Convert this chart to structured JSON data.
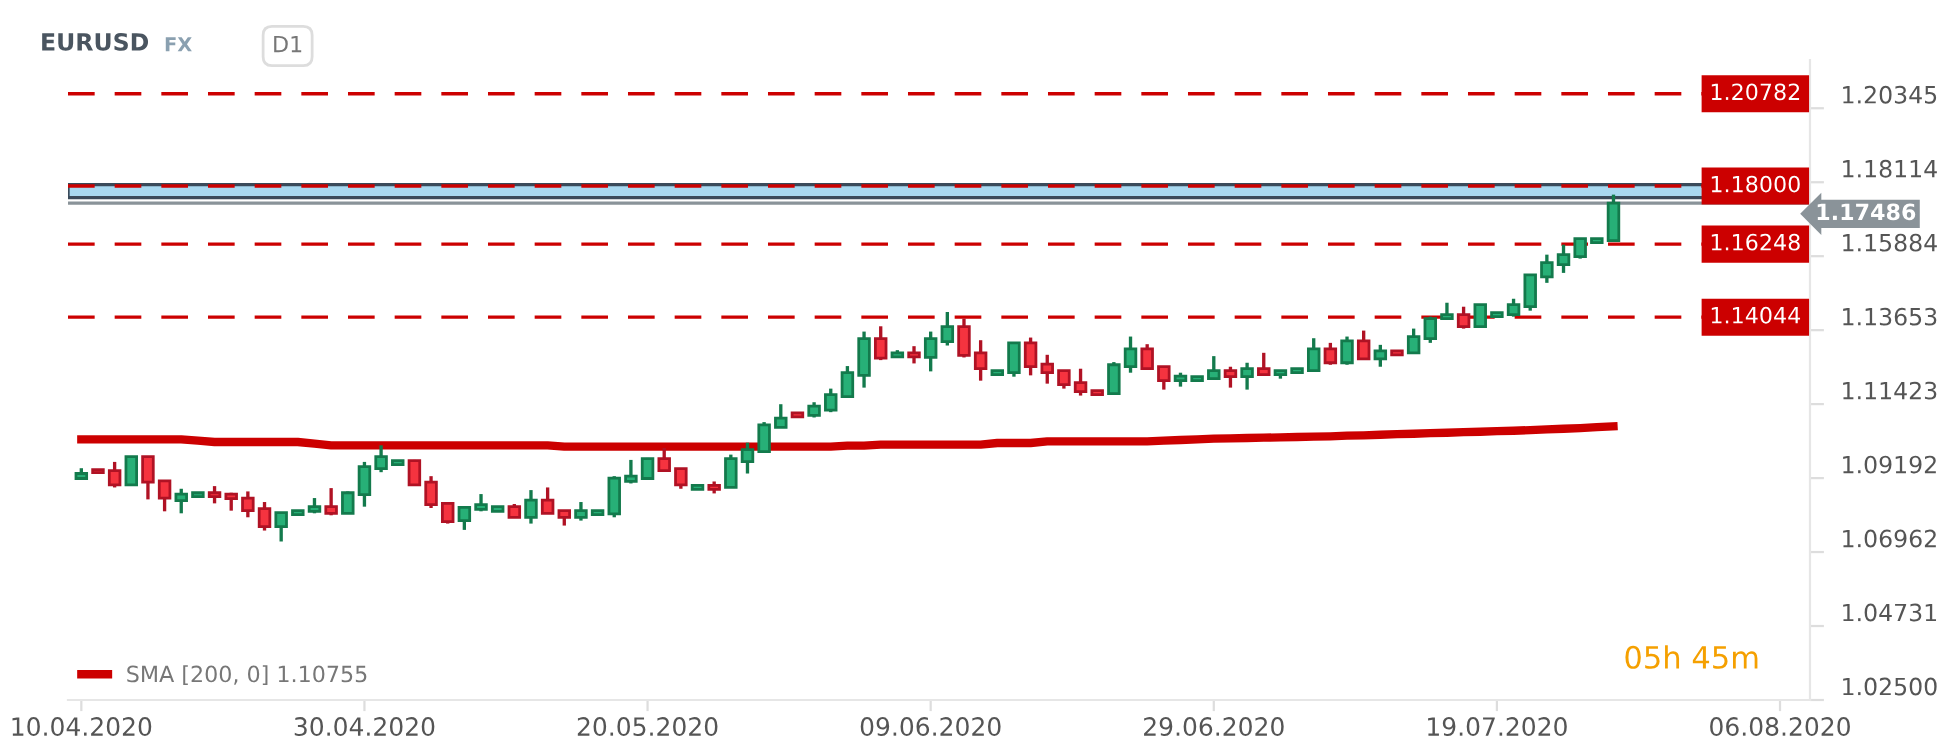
{
  "chart_data": {
    "type": "candlestick",
    "title": "EURUSD",
    "annotations": [
      "FX",
      "D1",
      "05h 45m"
    ],
    "categories": [
      "10.04.2020",
      null,
      null,
      null,
      null,
      null,
      null,
      null,
      null,
      null,
      null,
      null,
      null,
      null,
      null,
      null,
      null,
      "30.04.2020",
      null,
      null,
      null,
      null,
      null,
      null,
      null,
      null,
      null,
      null,
      null,
      null,
      null,
      null,
      null,
      null,
      "20.05.2020",
      null,
      null,
      null,
      null,
      null,
      null,
      null,
      null,
      null,
      null,
      null,
      null,
      null,
      null,
      null,
      null,
      "09.06.2020",
      null,
      null,
      null,
      null,
      null,
      null,
      null,
      null,
      null,
      null,
      null,
      null,
      null,
      null,
      null,
      null,
      "29.06.2020",
      null,
      null,
      null,
      null,
      null,
      null,
      null,
      null,
      null,
      null,
      null,
      null,
      null,
      null,
      null,
      null,
      "19.07.2020",
      null,
      null,
      null,
      null,
      null,
      null,
      null,
      null,
      null,
      null,
      null,
      null,
      null,
      null,
      null,
      null,
      "06.08.2020"
    ],
    "ohlc": [
      [
        1.0918,
        1.0949,
        1.0916,
        1.0933
      ],
      [
        1.0945,
        1.0946,
        1.0934,
        1.0936
      ],
      [
        1.0942,
        1.0968,
        1.0891,
        1.0899
      ],
      [
        1.0899,
        1.0986,
        1.0899,
        1.0984
      ],
      [
        1.0984,
        1.0984,
        1.0855,
        1.0907
      ],
      [
        1.0911,
        1.0913,
        1.0819,
        1.0859
      ],
      [
        1.0851,
        1.0887,
        1.0813,
        1.0871
      ],
      [
        1.0863,
        1.0877,
        1.0862,
        1.0875
      ],
      [
        1.0875,
        1.0895,
        1.0843,
        1.0863
      ],
      [
        1.0871,
        1.0875,
        1.0821,
        1.0857
      ],
      [
        1.0859,
        1.0879,
        1.0801,
        1.0821
      ],
      [
        1.0827,
        1.0847,
        1.0761,
        1.0773
      ],
      [
        1.0773,
        1.0815,
        1.0728,
        1.0815
      ],
      [
        1.0809,
        1.0823,
        1.0808,
        1.0821
      ],
      [
        1.0819,
        1.0859,
        1.0813,
        1.0833
      ],
      [
        1.0833,
        1.0889,
        1.0807,
        1.0813
      ],
      [
        1.0813,
        1.0879,
        1.0813,
        1.0875
      ],
      [
        1.0869,
        1.0968,
        1.0833,
        1.0954
      ],
      [
        1.0948,
        1.1018,
        1.0937,
        1.0984
      ],
      [
        1.096,
        1.0972,
        1.096,
        1.0972
      ],
      [
        1.0972,
        1.0974,
        1.0899,
        1.0899
      ],
      [
        1.0907,
        1.0925,
        1.0829,
        1.0839
      ],
      [
        1.0843,
        1.0844,
        1.0782,
        1.0788
      ],
      [
        1.0791,
        1.0831,
        1.0763,
        1.0831
      ],
      [
        1.0825,
        1.0871,
        1.0819,
        1.0839
      ],
      [
        1.0819,
        1.0833,
        1.0819,
        1.0833
      ],
      [
        1.0833,
        1.0841,
        1.0801,
        1.0801
      ],
      [
        1.0801,
        1.0883,
        1.0782,
        1.0853
      ],
      [
        1.0853,
        1.0891,
        1.0813,
        1.0813
      ],
      [
        1.0821,
        1.0821,
        1.0776,
        1.0801
      ],
      [
        1.0801,
        1.0847,
        1.0791,
        1.0821
      ],
      [
        1.0809,
        1.0821,
        1.0809,
        1.0821
      ],
      [
        1.0811,
        1.0925,
        1.0801,
        1.0919
      ],
      [
        1.0909,
        1.0974,
        1.0903,
        1.0925
      ],
      [
        1.0918,
        1.098,
        1.0918,
        1.0978
      ],
      [
        1.0978,
        1.101,
        1.0942,
        1.0942
      ],
      [
        1.0948,
        1.0948,
        1.0887,
        1.0899
      ],
      [
        1.0885,
        1.0897,
        1.0885,
        1.0897
      ],
      [
        1.0897,
        1.0909,
        1.0873,
        1.0885
      ],
      [
        1.0891,
        1.099,
        1.0891,
        1.0978
      ],
      [
        1.0969,
        1.1026,
        1.0933,
        1.1005
      ],
      [
        1.0999,
        1.1088,
        1.0999,
        1.108
      ],
      [
        1.1072,
        1.1142,
        1.1072,
        1.11
      ],
      [
        1.1116,
        1.1116,
        1.1104,
        1.1104
      ],
      [
        1.1108,
        1.1148,
        1.1102,
        1.1136
      ],
      [
        1.1124,
        1.1189,
        1.1118,
        1.1171
      ],
      [
        1.1165,
        1.1257,
        1.1165,
        1.1237
      ],
      [
        1.1229,
        1.1361,
        1.1192,
        1.134
      ],
      [
        1.134,
        1.1377,
        1.1275,
        1.1281
      ],
      [
        1.1285,
        1.1305,
        1.1285,
        1.1297
      ],
      [
        1.1297,
        1.1317,
        1.1265,
        1.1285
      ],
      [
        1.1283,
        1.1361,
        1.1241,
        1.134
      ],
      [
        1.1331,
        1.142,
        1.1319,
        1.1376
      ],
      [
        1.1376,
        1.14,
        1.1283,
        1.1289
      ],
      [
        1.1297,
        1.1335,
        1.1213,
        1.1249
      ],
      [
        1.1231,
        1.1243,
        1.1231,
        1.1243
      ],
      [
        1.1237,
        1.1327,
        1.1225,
        1.1327
      ],
      [
        1.1327,
        1.1343,
        1.1229,
        1.1255
      ],
      [
        1.1263,
        1.1291,
        1.1204,
        1.1237
      ],
      [
        1.1243,
        1.1243,
        1.1189,
        1.1201
      ],
      [
        1.1207,
        1.1249,
        1.1168,
        1.118
      ],
      [
        1.1183,
        1.1183,
        1.1171,
        1.1171
      ],
      [
        1.1174,
        1.1269,
        1.1171,
        1.1261
      ],
      [
        1.1255,
        1.1346,
        1.1237,
        1.1309
      ],
      [
        1.1309,
        1.1323,
        1.1249,
        1.1249
      ],
      [
        1.1255,
        1.1255,
        1.1186,
        1.1213
      ],
      [
        1.1213,
        1.1237,
        1.1195,
        1.1227
      ],
      [
        1.1213,
        1.1225,
        1.1213,
        1.1225
      ],
      [
        1.1219,
        1.1287,
        1.1219,
        1.1243
      ],
      [
        1.1243,
        1.1255,
        1.1192,
        1.1225
      ],
      [
        1.1225,
        1.1267,
        1.1186,
        1.1249
      ],
      [
        1.1249,
        1.1297,
        1.1231,
        1.1231
      ],
      [
        1.1231,
        1.1243,
        1.1219,
        1.1243
      ],
      [
        1.1237,
        1.1249,
        1.1237,
        1.1249
      ],
      [
        1.1243,
        1.1341,
        1.1243,
        1.1309
      ],
      [
        1.1309,
        1.1327,
        1.1261,
        1.1267
      ],
      [
        1.1267,
        1.1346,
        1.1261,
        1.1333
      ],
      [
        1.1333,
        1.1364,
        1.1279,
        1.1279
      ],
      [
        1.1279,
        1.1321,
        1.1255,
        1.1303
      ],
      [
        1.1303,
        1.1303,
        1.1291,
        1.1291
      ],
      [
        1.1297,
        1.137,
        1.1297,
        1.1346
      ],
      [
        1.134,
        1.1406,
        1.1327,
        1.14
      ],
      [
        1.14,
        1.1448,
        1.14,
        1.1412
      ],
      [
        1.1412,
        1.1436,
        1.137,
        1.1376
      ],
      [
        1.1376,
        1.1442,
        1.1376,
        1.1442
      ],
      [
        1.1406,
        1.1418,
        1.1406,
        1.1418
      ],
      [
        1.1412,
        1.146,
        1.1406,
        1.1442
      ],
      [
        1.1436,
        1.1532,
        1.1424,
        1.1532
      ],
      [
        1.1526,
        1.1593,
        1.1508,
        1.1569
      ],
      [
        1.1563,
        1.1623,
        1.1538,
        1.1593
      ],
      [
        1.1587,
        1.1641,
        1.1581,
        1.1641
      ],
      [
        1.1629,
        1.1641,
        1.1629,
        1.1641
      ],
      [
        1.1635,
        1.1774,
        1.1635,
        1.17486
      ],
      null,
      null,
      null,
      null,
      null,
      null,
      null,
      null,
      null,
      null
    ],
    "series": [
      {
        "type": "line",
        "name": "SMA [200, 0] 1.10755",
        "color": "#cc0000",
        "values": [
          1.1036,
          1.1036,
          1.1036,
          1.1036,
          1.1036,
          1.1036,
          1.1036,
          1.1032,
          1.1028,
          1.1028,
          1.1028,
          1.1028,
          1.1028,
          1.1028,
          1.1023,
          1.1018,
          1.1018,
          1.1018,
          1.1018,
          1.1018,
          1.1018,
          1.1018,
          1.1018,
          1.1018,
          1.1018,
          1.1018,
          1.1018,
          1.1018,
          1.1018,
          1.1014,
          1.1014,
          1.1014,
          1.1014,
          1.1014,
          1.1014,
          1.1014,
          1.1014,
          1.1014,
          1.1014,
          1.1014,
          1.1014,
          1.1014,
          1.1014,
          1.1014,
          1.1014,
          1.1014,
          1.1017,
          1.1017,
          1.102,
          1.102,
          1.102,
          1.102,
          1.102,
          1.102,
          1.102,
          1.1025,
          1.1025,
          1.1025,
          1.103,
          1.103,
          1.103,
          1.103,
          1.103,
          1.103,
          1.103,
          1.1032,
          1.1034,
          1.1036,
          1.1038,
          1.1039,
          1.104,
          1.1041,
          1.1042,
          1.1043,
          1.1044,
          1.1045,
          1.1047,
          1.1048,
          1.105,
          1.1052,
          1.1053,
          1.1055,
          1.1056,
          1.1058,
          1.1059,
          1.1061,
          1.1062,
          1.1064,
          1.1066,
          1.1068,
          1.107,
          1.1073,
          1.10755,
          null,
          null,
          null,
          null,
          null,
          null,
          null,
          null,
          null,
          null
        ]
      }
    ],
    "ref_lines": [
      {
        "axis": "y",
        "value": 1.20782,
        "label": "1.20782",
        "color": "#cc0000",
        "line_style": "dashed"
      },
      {
        "axis": "y",
        "value": 1.18,
        "label": "1.18000",
        "color": "#cc0000",
        "line_style": "dashed"
      },
      {
        "axis": "y",
        "value": 1.16248,
        "label": "1.16248",
        "color": "#cc0000",
        "line_style": "dashed"
      },
      {
        "axis": "y",
        "value": 1.14044,
        "label": "1.14044",
        "color": "#cc0000",
        "line_style": "dashed"
      },
      {
        "axis": "y",
        "value": 1.17486,
        "label": "1.17486",
        "color": "#8a9399",
        "line_style": "solid"
      }
    ],
    "bands": [
      {
        "axis": "y",
        "from": 1.1765,
        "to": 1.1804,
        "color": "#a8d8f0"
      }
    ],
    "ylim": [
      1.025,
      1.218
    ],
    "yticks": [
      1.20345,
      1.18114,
      1.15884,
      1.13653,
      1.11423,
      1.09192,
      1.06962,
      1.04731,
      {
        "value": 1.025,
        "label": "1.02500"
      }
    ],
    "legend": "bottom left",
    "grid": false
  }
}
